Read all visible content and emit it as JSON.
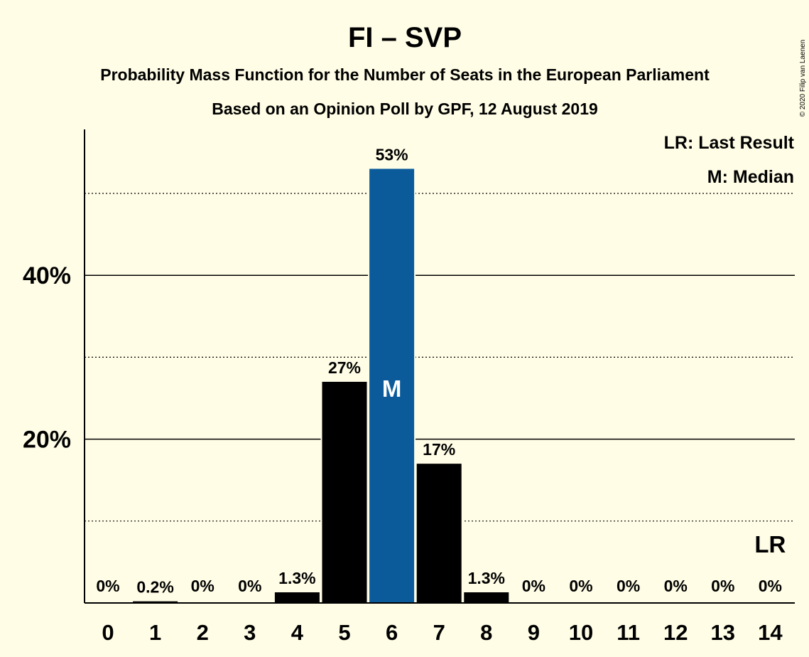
{
  "chart_data": {
    "type": "bar",
    "title": "FI – SVP",
    "subtitle": "Probability Mass Function for the Number of Seats in the European Parliament",
    "subtitle2": "Based on an Opinion Poll by GPF, 12 August 2019",
    "copyright": "© 2020 Filip van Laenen",
    "legend": [
      "LR: Last Result",
      "M: Median"
    ],
    "legend_position": "top-right",
    "categories": [
      "0",
      "1",
      "2",
      "3",
      "4",
      "5",
      "6",
      "7",
      "8",
      "9",
      "10",
      "11",
      "12",
      "13",
      "14"
    ],
    "values": [
      0,
      0.2,
      0,
      0,
      1.3,
      27,
      53,
      17,
      1.3,
      0,
      0,
      0,
      0,
      0,
      0
    ],
    "labels": [
      "0%",
      "0.2%",
      "0%",
      "0%",
      "1.3%",
      "27%",
      "53%",
      "17%",
      "1.3%",
      "0%",
      "0%",
      "0%",
      "0%",
      "0%",
      "0%"
    ],
    "ylim": [
      0,
      58
    ],
    "yticks": [
      {
        "value": 20,
        "label": "20%"
      },
      {
        "value": 40,
        "label": "40%"
      }
    ],
    "minor_gridlines": [
      10,
      30,
      50
    ],
    "median_seats": 6,
    "median_marker": "M",
    "last_result_seats": 14,
    "last_result_marker": "LR",
    "colors": {
      "background": "#fffde6",
      "bar": "#000000",
      "median_bar": "#0b5b9b",
      "median_marker_text": "#ffffff"
    }
  }
}
